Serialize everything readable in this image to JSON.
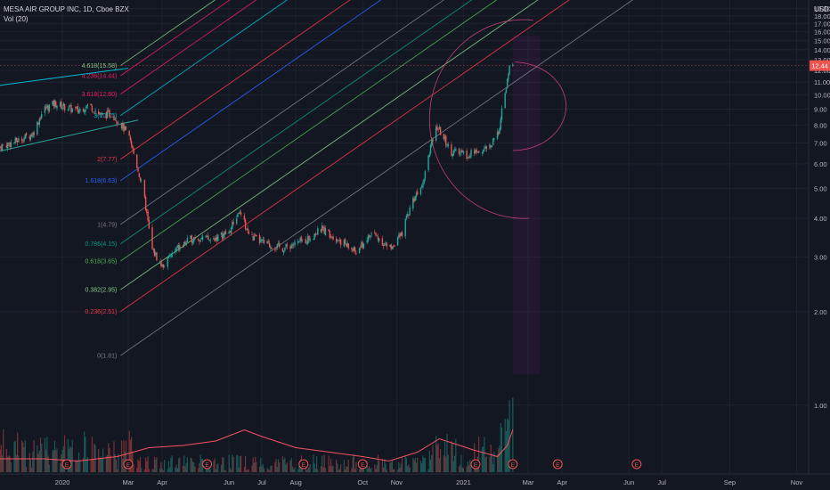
{
  "header": {
    "symbol_line": "MESA AIR GROUP INC, 1D, Cboe BZX",
    "volume_indicator": "Vol (20)",
    "currency": "USD"
  },
  "price_badge": {
    "value": "12.44",
    "color": "#ef5350"
  },
  "colors": {
    "background": "#131722",
    "up_candle": "#26a69a",
    "down_candle": "#ef5350",
    "volume_ma": "#f7525f",
    "arc": "#c2407a",
    "event_marker": "#f05350"
  },
  "chart_data": {
    "type": "candlestick",
    "y_axis": {
      "ylim": [
        0.6,
        19.2
      ],
      "ticks": [
        "1.00",
        "2.00",
        "3.00",
        "4.00",
        "5.00",
        "6.00",
        "7.00",
        "8.00",
        "9.00",
        "10.00",
        "11.00",
        "12.00",
        "13.00",
        "14.00",
        "15.00",
        "16.00",
        "17.00",
        "18.00",
        "19.00"
      ],
      "tick_values": [
        1,
        2,
        3,
        4,
        5,
        6,
        7,
        8,
        9,
        10,
        11,
        12,
        13,
        14,
        15,
        16,
        17,
        18,
        19
      ]
    },
    "x_axis": {
      "labels": [
        "2020",
        "Mar",
        "Apr",
        "Jun",
        "Jul",
        "Aug",
        "Oct",
        "Nov",
        "2021",
        "Mar",
        "Apr",
        "Jun",
        "Jul",
        "Sep",
        "Nov"
      ],
      "label_dates": [
        "2020-01-01",
        "2020-03-01",
        "2020-04-01",
        "2020-06-01",
        "2020-07-01",
        "2020-08-01",
        "2020-10-01",
        "2020-11-01",
        "2021-01-01",
        "2021-03-01",
        "2021-04-01",
        "2021-06-01",
        "2021-07-01",
        "2021-09-01",
        "2021-11-01"
      ],
      "range": [
        "2019-11-05",
        "2021-11-12"
      ]
    },
    "price_path": [
      [
        "2019-11-05",
        6.8
      ],
      [
        "2019-11-20",
        7.1
      ],
      [
        "2019-12-05",
        7.5
      ],
      [
        "2019-12-15",
        9.0
      ],
      [
        "2019-12-25",
        9.4
      ],
      [
        "2020-01-05",
        9.1
      ],
      [
        "2020-01-15",
        8.9
      ],
      [
        "2020-01-25",
        9.3
      ],
      [
        "2020-02-05",
        8.6
      ],
      [
        "2020-02-15",
        8.7
      ],
      [
        "2020-02-22",
        8.2
      ],
      [
        "2020-03-01",
        7.4
      ],
      [
        "2020-03-08",
        6.1
      ],
      [
        "2020-03-15",
        4.8
      ],
      [
        "2020-03-22",
        3.2
      ],
      [
        "2020-04-01",
        2.8
      ],
      [
        "2020-04-15",
        3.2
      ],
      [
        "2020-05-01",
        3.5
      ],
      [
        "2020-05-15",
        3.4
      ],
      [
        "2020-06-01",
        3.6
      ],
      [
        "2020-06-10",
        4.2
      ],
      [
        "2020-06-20",
        3.5
      ],
      [
        "2020-07-05",
        3.3
      ],
      [
        "2020-07-20",
        3.2
      ],
      [
        "2020-08-10",
        3.4
      ],
      [
        "2020-08-25",
        3.7
      ],
      [
        "2020-09-10",
        3.4
      ],
      [
        "2020-09-25",
        3.1
      ],
      [
        "2020-10-10",
        3.6
      ],
      [
        "2020-10-25",
        3.2
      ],
      [
        "2020-11-05",
        3.5
      ],
      [
        "2020-11-15",
        4.5
      ],
      [
        "2020-11-25",
        5.3
      ],
      [
        "2020-12-02",
        6.8
      ],
      [
        "2020-12-08",
        7.9
      ],
      [
        "2020-12-20",
        6.6
      ],
      [
        "2021-01-05",
        6.4
      ],
      [
        "2021-01-15",
        6.6
      ],
      [
        "2021-01-25",
        6.8
      ],
      [
        "2021-02-01",
        7.4
      ],
      [
        "2021-02-04",
        8.3
      ],
      [
        "2021-02-07",
        9.8
      ],
      [
        "2021-02-10",
        11.0
      ],
      [
        "2021-02-13",
        12.9
      ],
      [
        "2021-02-15",
        12.4
      ]
    ],
    "volume_ma_path": [
      [
        "2019-11-05",
        0.3
      ],
      [
        "2019-12-15",
        0.3
      ],
      [
        "2020-01-15",
        0.25
      ],
      [
        "2020-02-20",
        0.35
      ],
      [
        "2020-03-20",
        0.55
      ],
      [
        "2020-04-20",
        0.6
      ],
      [
        "2020-05-20",
        0.7
      ],
      [
        "2020-06-15",
        0.95
      ],
      [
        "2020-07-01",
        0.8
      ],
      [
        "2020-08-01",
        0.55
      ],
      [
        "2020-09-01",
        0.45
      ],
      [
        "2020-10-01",
        0.35
      ],
      [
        "2020-10-25",
        0.25
      ],
      [
        "2020-11-20",
        0.45
      ],
      [
        "2020-12-10",
        0.75
      ],
      [
        "2021-01-10",
        0.5
      ],
      [
        "2021-02-01",
        0.35
      ],
      [
        "2021-02-10",
        0.6
      ],
      [
        "2021-02-15",
        0.95
      ]
    ],
    "fib_channel": {
      "slope_per_day": 0.00535,
      "anchor_date": "2020-03-01",
      "levels": [
        {
          "label": "0(1.81)",
          "value": 1.81,
          "color": "#787b86"
        },
        {
          "label": "0.236(2.51)",
          "value": 2.51,
          "color": "#f23645"
        },
        {
          "label": "0.382(2.95)",
          "value": 2.95,
          "color": "#81c784"
        },
        {
          "label": "0.618(3.65)",
          "value": 3.65,
          "color": "#4caf50"
        },
        {
          "label": "0.786(4.15)",
          "value": 4.15,
          "color": "#089981"
        },
        {
          "label": "1(4.79)",
          "value": 4.79,
          "color": "#787b86"
        },
        {
          "label": "1.618(6.63)",
          "value": 6.63,
          "color": "#2962ff"
        },
        {
          "label": "2(7.77)",
          "value": 7.77,
          "color": "#f23645"
        },
        {
          "label": "3(10.75)",
          "value": 10.75,
          "color": "#00bcd4"
        },
        {
          "label": "3.618(12.60)",
          "value": 12.6,
          "color": "#e91e63"
        },
        {
          "label": "4.236(14.44)",
          "value": 14.44,
          "color": "#e91e63"
        },
        {
          "label": "4.618(15.58)",
          "value": 15.58,
          "color": "#81c784"
        }
      ]
    },
    "events": [
      "2020-01-05",
      "2020-03-01",
      "2020-05-12",
      "2020-08-08",
      "2020-10-01",
      "2021-01-12",
      "2021-02-15",
      "2021-03-28",
      "2021-06-08"
    ]
  }
}
